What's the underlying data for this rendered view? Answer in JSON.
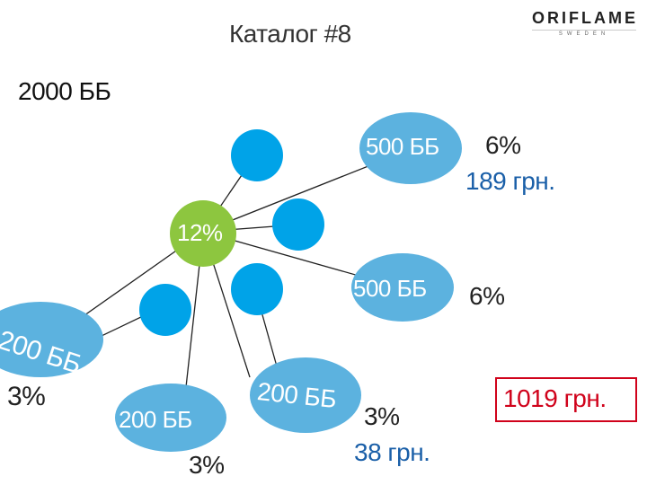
{
  "header": {
    "title": "Каталог #8",
    "total_points": "2000 ББ",
    "logo_text": "ORIFLAME",
    "logo_subtext": "SWEDEN"
  },
  "center_node": {
    "label": "12%",
    "color": "#8dc63f"
  },
  "colors": {
    "small_node": "#00a3e8",
    "ellipse": "#5cb2df",
    "accent_blue": "#1a5fa8",
    "accent_red": "#d0021b"
  },
  "nodes": {
    "top_right": {
      "points": "500 ББ",
      "percent": "6%",
      "amount": "189 грн."
    },
    "mid_right": {
      "points": "500 ББ",
      "percent": "6%"
    },
    "left": {
      "points": "200 ББ",
      "percent": "3%"
    },
    "bottom_left": {
      "points": "200 ББ",
      "percent": "3%"
    },
    "bottom_mid": {
      "points": "200 ББ",
      "percent": "3%",
      "amount": "38 грн."
    }
  },
  "total": {
    "amount": "1019 грн."
  }
}
